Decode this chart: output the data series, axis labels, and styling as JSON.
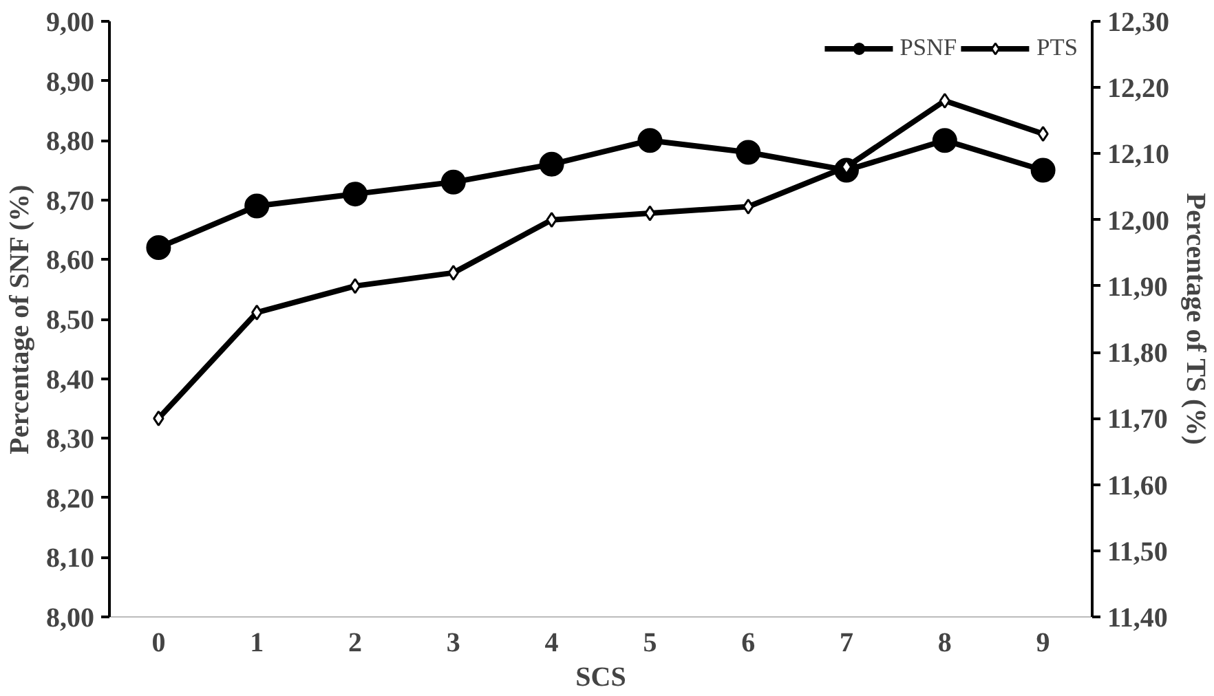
{
  "chart_data": {
    "type": "line",
    "xlabel": "SCS",
    "ylabel": "Percentage of SNF (%)",
    "y2label": "Percentage of TS (%)",
    "categories": [
      "0",
      "1",
      "2",
      "3",
      "4",
      "5",
      "6",
      "7",
      "8",
      "9"
    ],
    "series": [
      {
        "name": "PSNF",
        "color": "#000000",
        "marker": "circle",
        "values": [
          8.62,
          8.69,
          8.71,
          8.73,
          8.76,
          8.8,
          8.78,
          8.75,
          8.8,
          8.75
        ]
      },
      {
        "name": "PTS",
        "color": "#000000",
        "marker": "diamond",
        "axis": "y2",
        "values": [
          11.7,
          11.86,
          11.9,
          11.92,
          12.0,
          12.01,
          12.02,
          12.08,
          12.18,
          12.13
        ]
      }
    ],
    "ylim": [
      8.0,
      9.0
    ],
    "yticks": [
      {
        "value": 8.0,
        "label": "8,00"
      },
      {
        "value": 8.1,
        "label": "8,10"
      },
      {
        "value": 8.2,
        "label": "8,20"
      },
      {
        "value": 8.3,
        "label": "8,30"
      },
      {
        "value": 8.4,
        "label": "8,40"
      },
      {
        "value": 8.5,
        "label": "8,50"
      },
      {
        "value": 8.6,
        "label": "8,60"
      },
      {
        "value": 8.7,
        "label": "8,70"
      },
      {
        "value": 8.8,
        "label": "8,80"
      },
      {
        "value": 8.9,
        "label": "8,90"
      },
      {
        "value": 9.0,
        "label": "9,00"
      }
    ],
    "y2lim": [
      11.4,
      12.3
    ],
    "y2ticks": [
      {
        "value": 11.4,
        "label": "11,40"
      },
      {
        "value": 11.5,
        "label": "11,50"
      },
      {
        "value": 11.6,
        "label": "11,60"
      },
      {
        "value": 11.7,
        "label": "11,70"
      },
      {
        "value": 11.8,
        "label": "11,80"
      },
      {
        "value": 11.9,
        "label": "11,90"
      },
      {
        "value": 12.0,
        "label": "12,00"
      },
      {
        "value": 12.1,
        "label": "12,10"
      },
      {
        "value": 12.2,
        "label": "12,20"
      },
      {
        "value": 12.3,
        "label": "12,30"
      }
    ],
    "grid": false,
    "legend": "top right",
    "line_style": "solid"
  }
}
